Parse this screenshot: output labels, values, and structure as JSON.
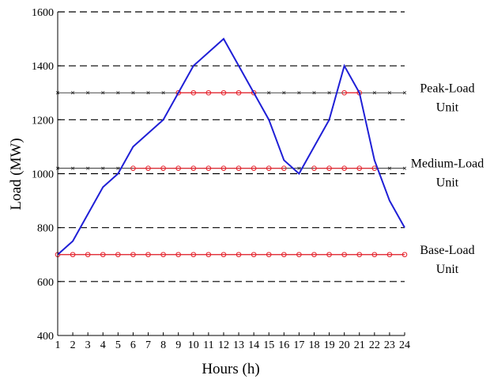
{
  "chart_data": {
    "type": "line",
    "title": "",
    "xlabel": "Hours (h)",
    "ylabel": "Load (MW)",
    "xlim": [
      1,
      24
    ],
    "ylim": [
      400,
      1600
    ],
    "xticks": [
      1,
      2,
      3,
      4,
      5,
      6,
      7,
      8,
      9,
      10,
      11,
      12,
      13,
      14,
      15,
      16,
      17,
      18,
      19,
      20,
      21,
      22,
      23,
      24
    ],
    "yticks": [
      400,
      600,
      800,
      1000,
      1200,
      1400,
      1600
    ],
    "grid": "horizontal-dashed",
    "colors": {
      "load": "#1f1fd6",
      "unit_marker": "#e8202a",
      "unit_line": "#111111",
      "grid": "#000000"
    },
    "series": [
      {
        "x": [
          1,
          2,
          3,
          4,
          5,
          6,
          7,
          8,
          9,
          10,
          11,
          12,
          13,
          14,
          15,
          16,
          17,
          18,
          19,
          20,
          21,
          22,
          23,
          24
        ],
        "values": [
          700,
          750,
          850,
          950,
          1000,
          1100,
          1150,
          1200,
          1300,
          1400,
          1450,
          1500,
          1400,
          1300,
          1200,
          1050,
          1000,
          1100,
          1200,
          1400,
          1300,
          1050,
          900,
          800
        ]
      }
    ],
    "unit_levels": [
      {
        "label_lines": [
          "Peak-Load",
          "Unit"
        ],
        "level": 1300
      },
      {
        "label_lines": [
          "Medium-Load",
          "Unit"
        ],
        "level": 1020
      },
      {
        "label_lines": [
          "Base-Load",
          "Unit"
        ],
        "level": 700
      }
    ]
  }
}
